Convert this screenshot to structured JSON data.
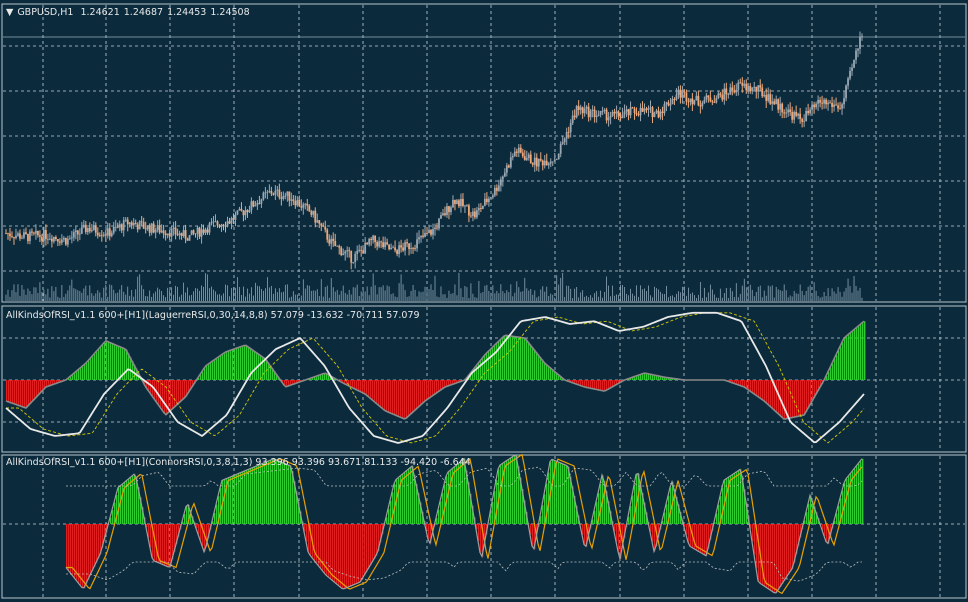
{
  "chart_data": [
    {
      "type": "candlestick",
      "symbol_label": "GBPUSD,H1",
      "ohlc": [
        "1.24621",
        "1.24687",
        "1.24453",
        "1.24508"
      ],
      "approx_close_path": [
        1.2446,
        1.2444,
        1.2445,
        1.2442,
        1.2449,
        1.2446,
        1.2452,
        1.2449,
        1.2447,
        1.2444,
        1.245,
        1.2453,
        1.2461,
        1.2469,
        1.2466,
        1.2457,
        1.244,
        1.2432,
        1.2442,
        1.2436,
        1.244,
        1.2448,
        1.2465,
        1.2456,
        1.247,
        1.2492,
        1.2485,
        1.2488,
        1.2515,
        1.2512,
        1.2511,
        1.2514,
        1.2513,
        1.2524,
        1.2519,
        1.2522,
        1.2528,
        1.2525,
        1.2516,
        1.2509,
        1.2519,
        1.2516,
        1.2558
      ],
      "colors": {
        "up": "#9aa8b4",
        "down": "#f0a878",
        "volume": "#8ea6b6"
      }
    },
    {
      "type": "oscillator",
      "label": "AllKindsOfRSI_v1.1 600+[H1](LaguerreRSI,0,30,14,8,8) 57.079 -13.632 -70.711 57.079",
      "levels": [
        80,
        50,
        20
      ],
      "histogram": [
        -15,
        -20,
        -5,
        0,
        12,
        28,
        22,
        -5,
        -25,
        -12,
        10,
        20,
        25,
        15,
        -5,
        0,
        5,
        -3,
        -10,
        -22,
        -28,
        -15,
        -5,
        0,
        18,
        32,
        30,
        12,
        0,
        -5,
        -8,
        0,
        5,
        2,
        0,
        0,
        0,
        -5,
        -15,
        -28,
        -25,
        0,
        30,
        42
      ],
      "main_line": [
        30,
        15,
        10,
        12,
        40,
        58,
        45,
        20,
        10,
        25,
        55,
        72,
        80,
        60,
        30,
        10,
        5,
        10,
        30,
        55,
        70,
        92,
        95,
        90,
        92,
        85,
        88,
        95,
        98,
        98,
        92,
        60,
        20,
        5,
        20,
        40
      ],
      "colors": {
        "up": "#2ecc2e",
        "down": "#e02020",
        "line": "#e8e8e8",
        "signal": "#d4c800"
      }
    },
    {
      "type": "oscillator",
      "label": "AllKindsOfRSI_v1.1 600+[H1](ConnorsRSI,0,3,8,1,3) 93.396 93.396 93.671 81.133 -94.420 -6.644",
      "levels": [
        50
      ],
      "histogram": [
        -30,
        -45,
        -20,
        25,
        35,
        -25,
        -30,
        15,
        -20,
        30,
        35,
        40,
        45,
        40,
        -20,
        -35,
        -45,
        -40,
        -20,
        30,
        40,
        -15,
        35,
        45,
        -25,
        40,
        48,
        -20,
        45,
        40,
        -18,
        35,
        -25,
        38,
        -20,
        30,
        -15,
        -22,
        30,
        38,
        -40,
        -48,
        -30,
        20,
        -15,
        30,
        45
      ],
      "colors": {
        "up": "#2ecc2e",
        "down": "#e02020",
        "line": "#e8a000",
        "bands": "#c0c0c0"
      }
    }
  ]
}
